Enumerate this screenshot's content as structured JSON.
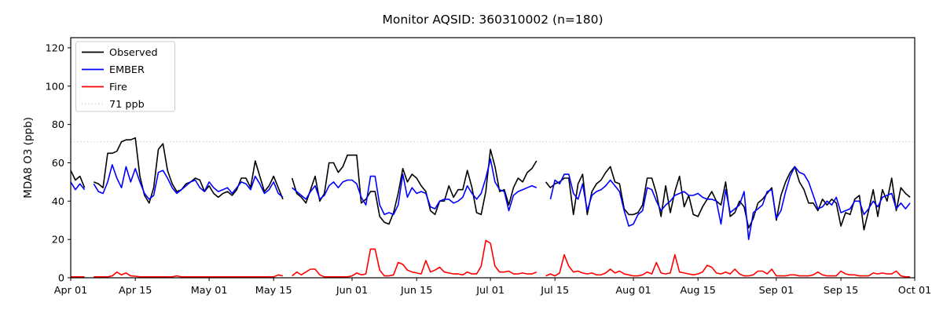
{
  "chart_data": {
    "type": "line",
    "title": "Monitor AQSID: 360310002 (n=180)",
    "monitor_aqsid": "360310002",
    "n_label": "n=180",
    "ylabel": "MDA8 O3 (ppb)",
    "xlabel": "",
    "grid": false,
    "legend_position": "upper-left",
    "x_start_label": "Apr 01",
    "x_end_label": "Oct 01",
    "x_range_days": 183,
    "ylim": [
      0,
      125.3
    ],
    "y_ticks": [
      0,
      20,
      40,
      60,
      80,
      100,
      120
    ],
    "x_ticks": [
      {
        "label": "Apr 01",
        "day": 0
      },
      {
        "label": "Apr 15",
        "day": 14
      },
      {
        "label": "May 01",
        "day": 30
      },
      {
        "label": "May 15",
        "day": 44
      },
      {
        "label": "Jun 01",
        "day": 61
      },
      {
        "label": "Jun 15",
        "day": 75
      },
      {
        "label": "Jul 01",
        "day": 91
      },
      {
        "label": "Jul 15",
        "day": 105
      },
      {
        "label": "Aug 01",
        "day": 122
      },
      {
        "label": "Aug 15",
        "day": 136
      },
      {
        "label": "Sep 01",
        "day": 153
      },
      {
        "label": "Sep 15",
        "day": 167
      },
      {
        "label": "Oct 01",
        "day": 183
      }
    ],
    "threshold": {
      "label": "71 ppb",
      "value": 71,
      "color": "#d3d3d3",
      "style": "dotted"
    },
    "series": [
      {
        "name": "Observed",
        "key": "observed",
        "color": "#000000",
        "values": [
          56,
          51,
          53,
          47,
          null,
          50,
          49,
          47,
          65,
          65,
          66,
          71,
          72,
          72,
          73,
          53,
          43,
          39,
          47,
          67,
          70,
          56,
          49,
          45,
          46,
          49,
          50,
          52,
          51,
          45,
          48,
          44,
          42,
          44,
          45,
          43,
          46,
          52,
          52,
          47,
          61,
          53,
          45,
          48,
          53,
          47,
          41,
          null,
          52,
          44,
          42,
          39,
          46,
          53,
          40,
          44,
          60,
          60,
          55,
          58,
          64,
          64,
          64,
          39,
          41,
          45,
          45,
          32,
          29,
          28,
          34,
          44,
          57,
          50,
          54,
          52,
          48,
          45,
          35,
          33,
          40,
          40,
          48,
          42,
          46,
          46,
          56,
          47,
          34,
          33,
          45,
          67,
          58,
          45,
          46,
          38,
          47,
          52,
          50,
          55,
          57,
          61,
          null,
          50,
          47,
          49,
          50,
          52,
          52,
          33,
          49,
          54,
          33,
          45,
          49,
          51,
          55,
          58,
          50,
          49,
          36,
          33,
          33,
          34,
          38,
          52,
          52,
          44,
          32,
          48,
          34,
          45,
          53,
          37,
          43,
          33,
          32,
          37,
          41,
          45,
          40,
          38,
          50,
          32,
          34,
          40,
          37,
          26,
          31,
          39,
          41,
          44,
          47,
          30,
          43,
          50,
          55,
          58,
          50,
          46,
          39,
          39,
          35,
          41,
          38,
          41,
          39,
          27,
          34,
          33,
          41,
          43,
          25,
          35,
          46,
          32,
          46,
          40,
          52,
          35,
          47,
          44,
          42
        ]
      },
      {
        "name": "EMBER",
        "key": "ember",
        "color": "#0000ff",
        "values": [
          50,
          46,
          49,
          46,
          null,
          49,
          45,
          44,
          50,
          59,
          52,
          47,
          58,
          50,
          57,
          50,
          44,
          41,
          43,
          55,
          56,
          52,
          47,
          44,
          46,
          48,
          50,
          51,
          47,
          45,
          50,
          47,
          45,
          46,
          47,
          44,
          47,
          50,
          49,
          46,
          53,
          49,
          44,
          46,
          50,
          44,
          42,
          null,
          47,
          45,
          43,
          41,
          45,
          48,
          41,
          43,
          48,
          50,
          47,
          50,
          51,
          51,
          49,
          42,
          38,
          53,
          53,
          38,
          33,
          34,
          33,
          38,
          54,
          42,
          47,
          44,
          45,
          44,
          37,
          36,
          40,
          41,
          41,
          39,
          40,
          42,
          48,
          44,
          41,
          44,
          52,
          62,
          50,
          46,
          45,
          35,
          43,
          45,
          46,
          47,
          48,
          47,
          null,
          null,
          41,
          51,
          49,
          54,
          54,
          44,
          41,
          49,
          35,
          43,
          45,
          46,
          48,
          51,
          48,
          45,
          35,
          27,
          28,
          33,
          35,
          47,
          46,
          40,
          35,
          38,
          40,
          43,
          44,
          45,
          43,
          43,
          44,
          42,
          41,
          41,
          40,
          28,
          46,
          34,
          36,
          38,
          45,
          20,
          34,
          36,
          38,
          45,
          46,
          31,
          35,
          45,
          53,
          58,
          55,
          54,
          50,
          43,
          36,
          37,
          40,
          38,
          42,
          34,
          35,
          36,
          40,
          40,
          33,
          36,
          40,
          37,
          42,
          43,
          44,
          36,
          39,
          36,
          39
        ]
      },
      {
        "name": "Fire",
        "key": "fire",
        "color": "#ff0000",
        "values": [
          0.5,
          0.5,
          0.5,
          0.5,
          null,
          0.5,
          0.5,
          0.5,
          0.5,
          1,
          3,
          1.5,
          2.5,
          1,
          0.8,
          0.5,
          0.5,
          0.5,
          0.5,
          0.5,
          0.5,
          0.5,
          0.5,
          1,
          0.5,
          0.5,
          0.5,
          0.5,
          0.5,
          0.5,
          0.5,
          0.5,
          0.5,
          0.5,
          0.5,
          0.5,
          0.5,
          0.5,
          0.5,
          0.5,
          0.5,
          0.5,
          0.5,
          0.5,
          0.5,
          1.5,
          1,
          null,
          1,
          3,
          1.5,
          3,
          4.5,
          4.5,
          1.5,
          0.5,
          0.5,
          0.5,
          0.5,
          0.5,
          0.5,
          1,
          2.5,
          1.5,
          2,
          15,
          15,
          4,
          1,
          1,
          1.5,
          8,
          7,
          4,
          3,
          2.5,
          2,
          9,
          3,
          4,
          5.5,
          3,
          2.5,
          2,
          2,
          1.5,
          3,
          2,
          2,
          6,
          19.5,
          18,
          6,
          3,
          3,
          3.5,
          2,
          2,
          2.5,
          2,
          2,
          3,
          null,
          1,
          2,
          1,
          2.5,
          12,
          6,
          3,
          3.5,
          2.5,
          2,
          2.5,
          1.5,
          1.5,
          2.5,
          4.5,
          2.5,
          3.5,
          2,
          1.5,
          1,
          1,
          1.5,
          3,
          2,
          8,
          2.5,
          2,
          2.5,
          12,
          3,
          2.5,
          2,
          1.5,
          2,
          3,
          6.5,
          5.5,
          2.5,
          2,
          3,
          2,
          4.5,
          2,
          1,
          1,
          1.5,
          3.5,
          3.5,
          2,
          4.5,
          1,
          1,
          1,
          1.5,
          1.5,
          1,
          1,
          1,
          1.5,
          3,
          1.5,
          1,
          1,
          1,
          3.5,
          2,
          1.5,
          1.5,
          1,
          1,
          1,
          2.5,
          2,
          2.5,
          2,
          2,
          3.5,
          1,
          0.5,
          0.5
        ]
      }
    ]
  }
}
